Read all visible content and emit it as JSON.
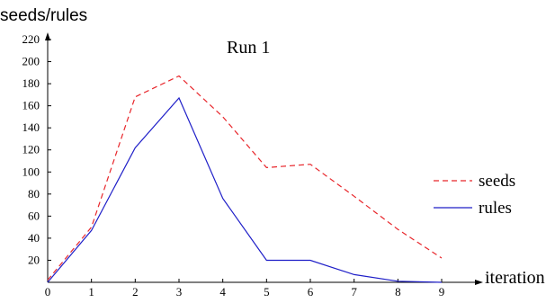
{
  "chart_data": {
    "type": "line",
    "title": "Run 1",
    "ylabel": "seeds/rules",
    "xlabel": "iteration",
    "x": [
      0,
      1,
      2,
      3,
      4,
      5,
      6,
      7,
      8,
      9
    ],
    "ylim": [
      0,
      220
    ],
    "xlim": [
      0,
      9
    ],
    "yticks": [
      20,
      40,
      60,
      80,
      100,
      120,
      140,
      160,
      180,
      200,
      220
    ],
    "xticks": [
      0,
      1,
      2,
      3,
      4,
      5,
      6,
      7,
      8,
      9
    ],
    "grid": false,
    "legend_position": "right",
    "series": [
      {
        "name": "seeds",
        "values": [
          2,
          50,
          168,
          187,
          150,
          104,
          107,
          78,
          48,
          22
        ],
        "color": "#e8262b",
        "style": "dashed"
      },
      {
        "name": "rules",
        "values": [
          0,
          47,
          122,
          167,
          76,
          20,
          20,
          7,
          1,
          0
        ],
        "color": "#1f1fc8",
        "style": "solid"
      }
    ]
  }
}
